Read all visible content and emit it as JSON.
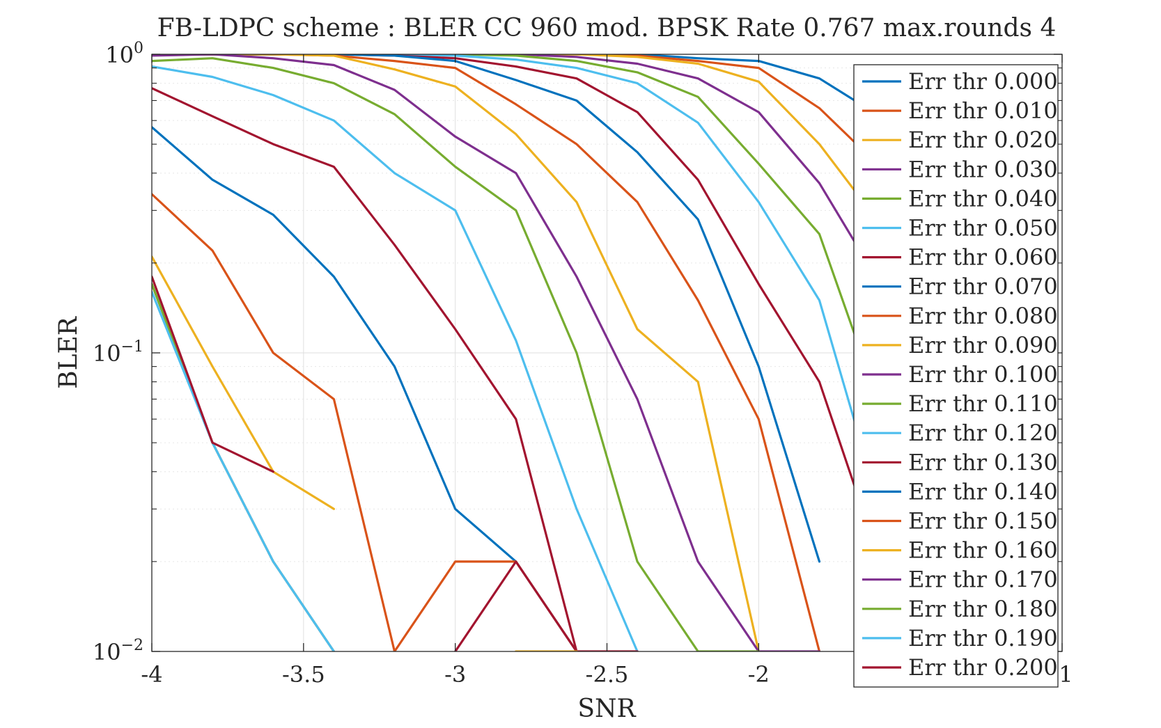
{
  "chart_data": {
    "type": "line",
    "title": "FB-LDPC scheme : BLER CC 960 mod. BPSK Rate 0.767 max.rounds 4",
    "xlabel": "SNR",
    "ylabel": "BLER",
    "xlim": [
      -4,
      -1
    ],
    "ylim": [
      0.01,
      1
    ],
    "yscale": "log",
    "grid": true,
    "minor_grid_y": true,
    "legend_position": "right, overlapping plot area",
    "x_ticks": [
      {
        "value": -4,
        "label": "-4"
      },
      {
        "value": -3.5,
        "label": "-3.5"
      },
      {
        "value": -3,
        "label": "-3"
      },
      {
        "value": -2.5,
        "label": "-2.5"
      },
      {
        "value": -2,
        "label": "-2"
      },
      {
        "value": -1,
        "label": "-1"
      }
    ],
    "y_ticks": [
      {
        "value": 0.01,
        "base": "10",
        "exp": "−2"
      },
      {
        "value": 0.1,
        "base": "10",
        "exp": "−1"
      },
      {
        "value": 1,
        "base": "10",
        "exp": "0"
      }
    ],
    "series": [
      {
        "name": "Err thr 0.000",
        "color": "#0072BD",
        "points": [
          [
            -4,
            1
          ],
          [
            -3.8,
            1
          ],
          [
            -3.6,
            1
          ],
          [
            -3.4,
            1
          ],
          [
            -3.2,
            1
          ],
          [
            -3,
            1
          ],
          [
            -2.8,
            1
          ],
          [
            -2.6,
            1
          ],
          [
            -2.4,
            1
          ],
          [
            -2.2,
            0.97
          ],
          [
            -2,
            0.95
          ],
          [
            -1.8,
            0.83
          ],
          [
            -1.6,
            0.62
          ]
        ]
      },
      {
        "name": "Err thr 0.010",
        "color": "#D95319",
        "points": [
          [
            -4,
            1
          ],
          [
            -3.8,
            1
          ],
          [
            -3.6,
            1
          ],
          [
            -3.4,
            1
          ],
          [
            -3.2,
            1
          ],
          [
            -3,
            1
          ],
          [
            -2.8,
            1
          ],
          [
            -2.6,
            1
          ],
          [
            -2.4,
            0.99
          ],
          [
            -2.2,
            0.95
          ],
          [
            -2,
            0.9
          ],
          [
            -1.8,
            0.66
          ],
          [
            -1.6,
            0.42
          ]
        ]
      },
      {
        "name": "Err thr 0.020",
        "color": "#EDB120",
        "points": [
          [
            -4,
            1
          ],
          [
            -3.8,
            1
          ],
          [
            -3.6,
            1
          ],
          [
            -3.4,
            1
          ],
          [
            -3.2,
            1
          ],
          [
            -3,
            1
          ],
          [
            -2.8,
            1
          ],
          [
            -2.6,
            1
          ],
          [
            -2.4,
            0.98
          ],
          [
            -2.2,
            0.93
          ],
          [
            -2,
            0.81
          ],
          [
            -1.8,
            0.5
          ],
          [
            -1.6,
            0.27
          ]
        ]
      },
      {
        "name": "Err thr 0.030",
        "color": "#7E2F8E",
        "points": [
          [
            -4,
            1
          ],
          [
            -3.8,
            1
          ],
          [
            -3.6,
            1
          ],
          [
            -3.4,
            1
          ],
          [
            -3.2,
            1
          ],
          [
            -3,
            1
          ],
          [
            -2.8,
            1
          ],
          [
            -2.6,
            0.98
          ],
          [
            -2.4,
            0.93
          ],
          [
            -2.2,
            0.83
          ],
          [
            -2,
            0.64
          ],
          [
            -1.8,
            0.37
          ],
          [
            -1.6,
            0.17
          ]
        ]
      },
      {
        "name": "Err thr 0.040",
        "color": "#77AC30",
        "points": [
          [
            -4,
            1
          ],
          [
            -3.8,
            1
          ],
          [
            -3.6,
            1
          ],
          [
            -3.4,
            1
          ],
          [
            -3.2,
            1
          ],
          [
            -3,
            1
          ],
          [
            -2.8,
            0.99
          ],
          [
            -2.6,
            0.95
          ],
          [
            -2.4,
            0.87
          ],
          [
            -2.2,
            0.72
          ],
          [
            -2,
            0.43
          ],
          [
            -1.8,
            0.25
          ],
          [
            -1.6,
            0.066
          ]
        ]
      },
      {
        "name": "Err thr 0.050",
        "color": "#4DBEEE",
        "points": [
          [
            -4,
            1
          ],
          [
            -3.8,
            1
          ],
          [
            -3.6,
            1
          ],
          [
            -3.4,
            1
          ],
          [
            -3.2,
            1
          ],
          [
            -3,
            0.99
          ],
          [
            -2.8,
            0.96
          ],
          [
            -2.6,
            0.9
          ],
          [
            -2.4,
            0.8
          ],
          [
            -2.2,
            0.59
          ],
          [
            -2,
            0.32
          ],
          [
            -1.8,
            0.15
          ],
          [
            -1.6,
            0.03
          ]
        ]
      },
      {
        "name": "Err thr 0.060",
        "color": "#A2142F",
        "points": [
          [
            -4,
            1
          ],
          [
            -3.8,
            1
          ],
          [
            -3.6,
            1
          ],
          [
            -3.4,
            1
          ],
          [
            -3.2,
            0.99
          ],
          [
            -3,
            0.97
          ],
          [
            -2.8,
            0.91
          ],
          [
            -2.6,
            0.83
          ],
          [
            -2.4,
            0.64
          ],
          [
            -2.2,
            0.38
          ],
          [
            -2,
            0.17
          ],
          [
            -1.8,
            0.08
          ],
          [
            -1.6,
            0.02
          ]
        ]
      },
      {
        "name": "Err thr 0.070",
        "color": "#0072BD",
        "points": [
          [
            -4,
            1
          ],
          [
            -3.8,
            1
          ],
          [
            -3.6,
            1
          ],
          [
            -3.4,
            1
          ],
          [
            -3.2,
            0.99
          ],
          [
            -3,
            0.95
          ],
          [
            -2.8,
            0.82
          ],
          [
            -2.6,
            0.7
          ],
          [
            -2.4,
            0.47
          ],
          [
            -2.2,
            0.28
          ],
          [
            -2,
            0.09
          ],
          [
            -1.8,
            0.02
          ]
        ]
      },
      {
        "name": "Err thr 0.080",
        "color": "#D95319",
        "points": [
          [
            -4,
            1
          ],
          [
            -3.8,
            1
          ],
          [
            -3.6,
            1
          ],
          [
            -3.4,
            0.99
          ],
          [
            -3.2,
            0.95
          ],
          [
            -3,
            0.9
          ],
          [
            -2.8,
            0.68
          ],
          [
            -2.6,
            0.5
          ],
          [
            -2.4,
            0.32
          ],
          [
            -2.2,
            0.15
          ],
          [
            -2,
            0.06
          ],
          [
            -1.8,
            0.01
          ]
        ]
      },
      {
        "name": "Err thr 0.090",
        "color": "#EDB120",
        "points": [
          [
            -4,
            1
          ],
          [
            -3.8,
            1
          ],
          [
            -3.6,
            1
          ],
          [
            -3.4,
            0.99
          ],
          [
            -3.2,
            0.89
          ],
          [
            -3,
            0.78
          ],
          [
            -2.8,
            0.54
          ],
          [
            -2.6,
            0.32
          ],
          [
            -2.4,
            0.12
          ],
          [
            -2.2,
            0.08
          ],
          [
            -2,
            0.01
          ]
        ]
      },
      {
        "name": "Err thr 0.100",
        "color": "#7E2F8E",
        "points": [
          [
            -4,
            0.99
          ],
          [
            -3.8,
            1
          ],
          [
            -3.6,
            0.97
          ],
          [
            -3.4,
            0.92
          ],
          [
            -3.2,
            0.76
          ],
          [
            -3,
            0.53
          ],
          [
            -2.8,
            0.4
          ],
          [
            -2.6,
            0.18
          ],
          [
            -2.4,
            0.07
          ],
          [
            -2.2,
            0.02
          ],
          [
            -2,
            0.01
          ],
          [
            -1.8,
            0.01
          ]
        ]
      },
      {
        "name": "Err thr 0.110",
        "color": "#77AC30",
        "points": [
          [
            -4,
            0.95
          ],
          [
            -3.8,
            0.97
          ],
          [
            -3.6,
            0.9
          ],
          [
            -3.4,
            0.8
          ],
          [
            -3.2,
            0.63
          ],
          [
            -3,
            0.42
          ],
          [
            -2.8,
            0.3
          ],
          [
            -2.6,
            0.1
          ],
          [
            -2.4,
            0.02
          ],
          [
            -2.2,
            0.01
          ],
          [
            -2,
            0.01
          ]
        ]
      },
      {
        "name": "Err thr 0.120",
        "color": "#4DBEEE",
        "points": [
          [
            -4,
            0.91
          ],
          [
            -3.8,
            0.84
          ],
          [
            -3.6,
            0.73
          ],
          [
            -3.4,
            0.6
          ],
          [
            -3.2,
            0.4
          ],
          [
            -3,
            0.3
          ],
          [
            -2.8,
            0.11
          ],
          [
            -2.6,
            0.03
          ],
          [
            -2.4,
            0.01
          ]
        ]
      },
      {
        "name": "Err thr 0.130",
        "color": "#A2142F",
        "points": [
          [
            -4,
            0.77
          ],
          [
            -3.8,
            0.62
          ],
          [
            -3.6,
            0.5
          ],
          [
            -3.4,
            0.42
          ],
          [
            -3.2,
            0.23
          ],
          [
            -3,
            0.12
          ],
          [
            -2.8,
            0.06
          ],
          [
            -2.6,
            0.01
          ],
          [
            -2.4,
            0.01
          ]
        ]
      },
      {
        "name": "Err thr 0.140",
        "color": "#0072BD",
        "points": [
          [
            -4,
            0.57
          ],
          [
            -3.8,
            0.38
          ],
          [
            -3.6,
            0.29
          ],
          [
            -3.4,
            0.18
          ],
          [
            -3.2,
            0.09
          ],
          [
            -3,
            0.03
          ],
          [
            -2.8,
            0.02
          ],
          [
            -2.6,
            0.01
          ]
        ]
      },
      {
        "name": "Err thr 0.150",
        "color": "#D95319",
        "points": [
          [
            -4,
            0.34
          ],
          [
            -3.8,
            0.22
          ],
          [
            -3.6,
            0.1
          ],
          [
            -3.4,
            0.07
          ],
          [
            -3.2,
            0.01
          ],
          [
            -3,
            0.02
          ],
          [
            -2.8,
            0.02
          ],
          [
            -2.6,
            0.01
          ]
        ]
      },
      {
        "name": "Err thr 0.160",
        "color": "#EDB120",
        "points": [
          [
            -4,
            0.21
          ],
          [
            -3.8,
            0.09
          ],
          [
            -3.6,
            0.04
          ],
          [
            -3.4,
            0.03
          ]
        ]
      },
      {
        "name": "Err thr 0.170",
        "color": "#7E2F8E",
        "points": [
          [
            -4,
            0.17
          ],
          [
            -3.8,
            0.05
          ],
          [
            -3.6,
            0.02
          ],
          [
            -3.4,
            0.01
          ]
        ]
      },
      {
        "name": "Err thr 0.180",
        "color": "#77AC30",
        "points": [
          [
            -4,
            0.17
          ],
          [
            -3.8,
            0.05
          ],
          [
            -3.6,
            0.02
          ],
          [
            -3.4,
            0.01
          ]
        ]
      },
      {
        "name": "Err thr 0.190",
        "color": "#4DBEEE",
        "points": [
          [
            -4,
            0.16
          ],
          [
            -3.8,
            0.05
          ],
          [
            -3.6,
            0.02
          ],
          [
            -3.4,
            0.01
          ]
        ]
      },
      {
        "name": "Err thr 0.200",
        "color": "#A2142F",
        "points": [
          [
            -4,
            0.18
          ],
          [
            -3.8,
            0.05
          ],
          [
            -3.6,
            0.04
          ]
        ]
      },
      {
        "name": "",
        "color": "#A2142F",
        "points": [
          [
            -3,
            0.01
          ],
          [
            -2.8,
            0.02
          ],
          [
            -2.6,
            0.01
          ]
        ]
      },
      {
        "name": "",
        "color": "#EDB120",
        "points": [
          [
            -2.8,
            0.01
          ],
          [
            -2.6,
            0.01
          ]
        ]
      }
    ]
  }
}
